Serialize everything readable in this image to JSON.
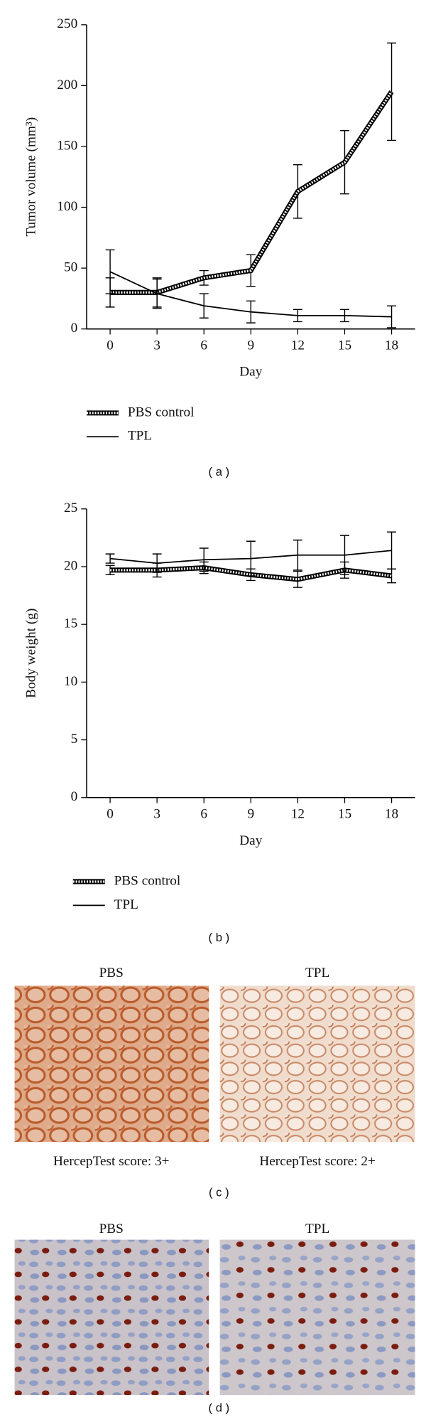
{
  "chart_data": [
    {
      "type": "line",
      "caption": "( a )",
      "xlabel": "Day",
      "ylabel": "Tumor volume (mm³)",
      "x": [
        0,
        3,
        6,
        9,
        12,
        15,
        18
      ],
      "xlim": [
        -1.5,
        19.5
      ],
      "xticks": [
        0,
        3,
        6,
        9,
        12,
        15,
        18
      ],
      "ylim": [
        0,
        250
      ],
      "yticks": [
        0,
        50,
        100,
        150,
        200,
        250
      ],
      "series": [
        {
          "name": "PBS control",
          "color": "#000000",
          "line_style": "hatched",
          "values": [
            30,
            30,
            42,
            48,
            113,
            137,
            195
          ],
          "errors": [
            12,
            12,
            6,
            13,
            22,
            26,
            40
          ]
        },
        {
          "name": "TPL",
          "color": "#000000",
          "line_style": "solid",
          "values": [
            47,
            29,
            19,
            14,
            11,
            11,
            10
          ],
          "errors": [
            18,
            12,
            10,
            9,
            5,
            5,
            9
          ]
        }
      ]
    },
    {
      "type": "line",
      "caption": "( b )",
      "xlabel": "Day",
      "ylabel": "Body weight (g)",
      "x": [
        0,
        3,
        6,
        9,
        12,
        15,
        18
      ],
      "xlim": [
        -1.5,
        19.5
      ],
      "xticks": [
        0,
        3,
        6,
        9,
        12,
        15,
        18
      ],
      "ylim": [
        0,
        25
      ],
      "yticks": [
        0,
        5,
        10,
        15,
        20,
        25
      ],
      "series": [
        {
          "name": "PBS control",
          "color": "#000000",
          "line_style": "hatched",
          "values": [
            19.7,
            19.7,
            19.9,
            19.3,
            18.9,
            19.7,
            19.2
          ],
          "errors": [
            0.4,
            0.6,
            0.5,
            0.5,
            0.7,
            0.7,
            0.6
          ]
        },
        {
          "name": "TPL",
          "color": "#000000",
          "line_style": "solid",
          "values": [
            20.7,
            20.3,
            20.6,
            20.7,
            21.0,
            21.0,
            21.4
          ],
          "errors": [
            0.4,
            0.8,
            1.0,
            1.5,
            1.3,
            1.7,
            1.6
          ]
        }
      ]
    }
  ],
  "panels": [
    {
      "caption": "( c )",
      "images": [
        {
          "title": "PBS",
          "score": "HercepTest score: 3+"
        },
        {
          "title": "TPL",
          "score": "HercepTest score: 2+"
        }
      ]
    },
    {
      "caption": "( d )",
      "images": [
        {
          "title": "PBS"
        },
        {
          "title": "TPL"
        }
      ]
    }
  ]
}
